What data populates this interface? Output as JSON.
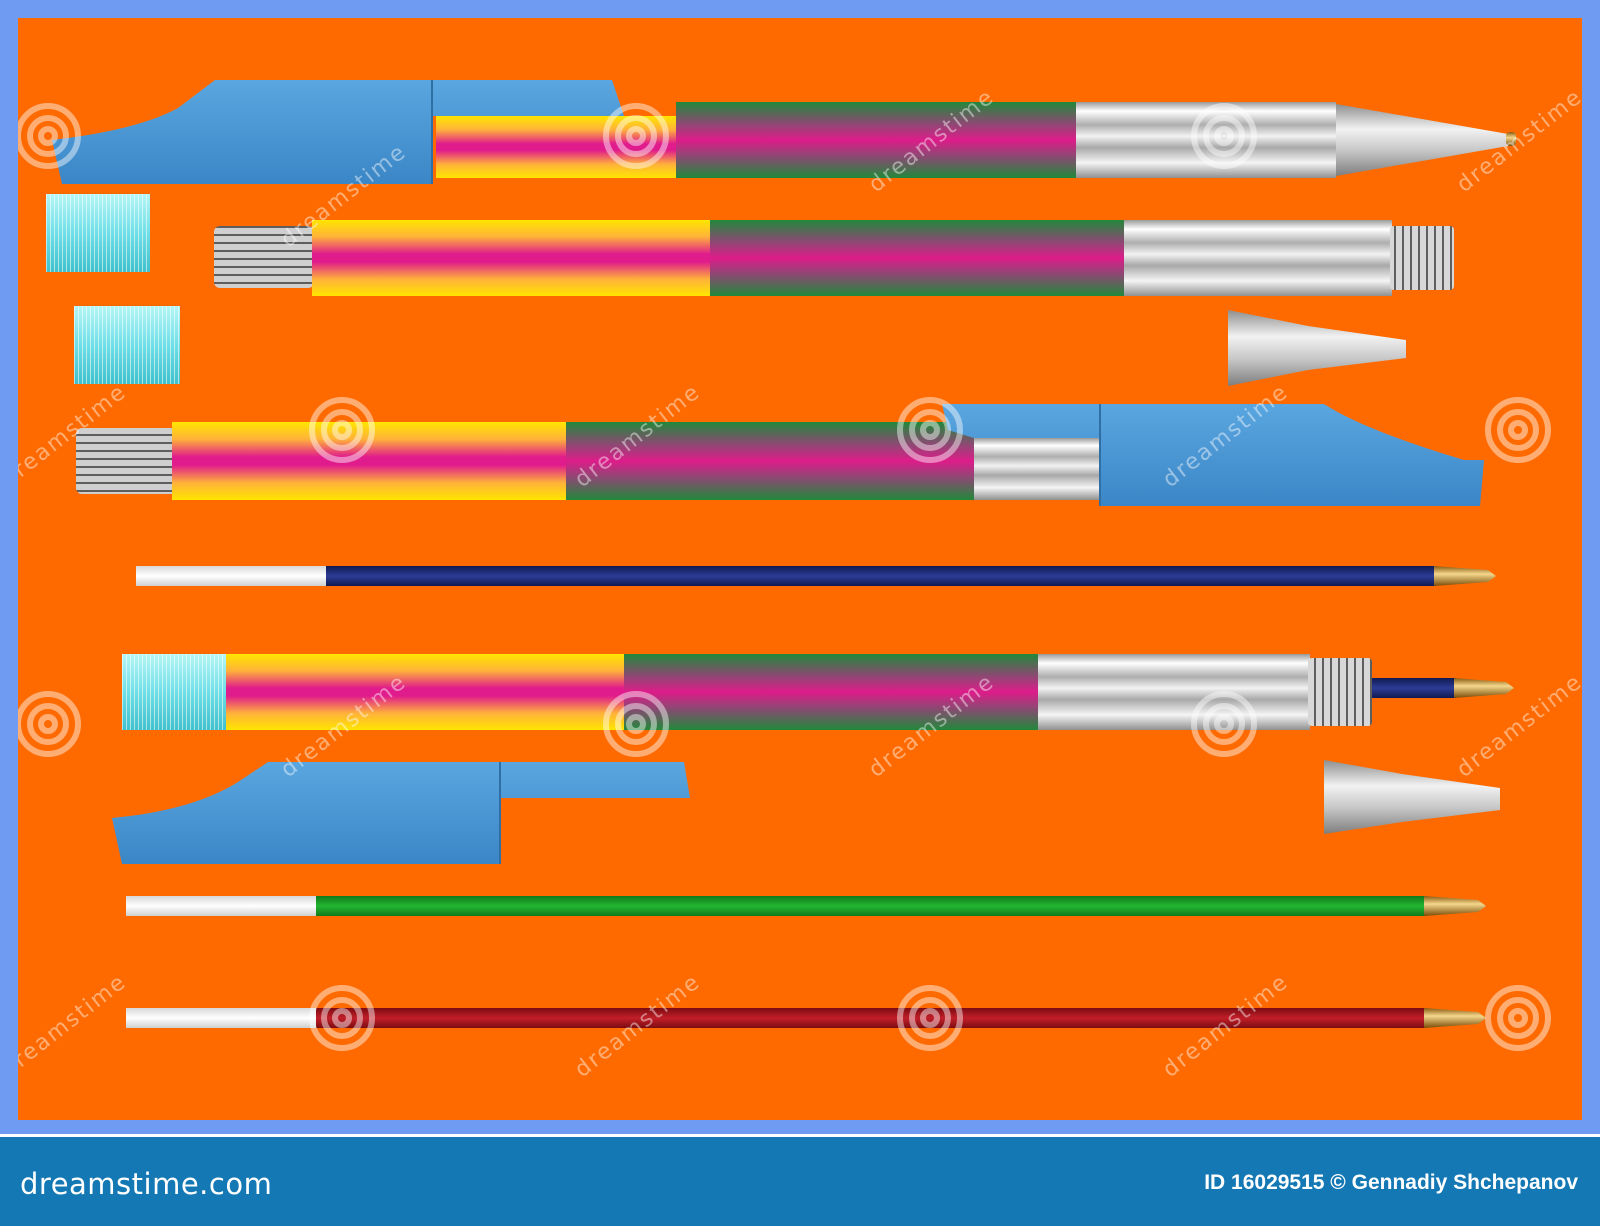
{
  "image": {
    "subject": "pen-parts",
    "colors": {
      "background": "#ff6a00",
      "border": "#6f9cf2",
      "footer": "#1478b4",
      "cap_blue": "#4a95d2",
      "metal": "#b9b9b9",
      "cyan_cap": "#7ee6ec",
      "refill_blue": "#1c2a72",
      "refill_green": "#169a26",
      "refill_red": "#a5141c"
    }
  },
  "watermark": {
    "text": "dreamstime"
  },
  "footer": {
    "brand": "dreamstime.com",
    "credit": "ID 16029515 © Gennadiy Shchepanov"
  }
}
